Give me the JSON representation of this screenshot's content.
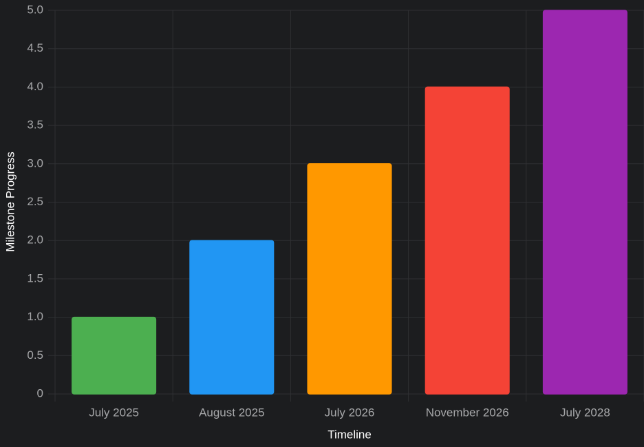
{
  "chart_data": {
    "type": "bar",
    "x_label": "Timeline",
    "y_label": "Milestone Progress",
    "categories": [
      "July 2025",
      "August 2025",
      "July 2026",
      "November 2026",
      "July 2028"
    ],
    "values": [
      1,
      2,
      3,
      4,
      5
    ],
    "colors": [
      "#4caf50",
      "#2196f3",
      "#ff9800",
      "#f44336",
      "#9c27b0"
    ],
    "ylim": [
      0,
      5
    ],
    "yticks": [
      0,
      0.5,
      {
        "value": 1,
        "label": "1.0"
      },
      1.5,
      {
        "value": 2,
        "label": "2.0"
      },
      2.5,
      {
        "value": 3,
        "label": "3.0"
      },
      3.5,
      {
        "value": 4,
        "label": "4.0"
      },
      4.5,
      {
        "value": 5,
        "label": "5.0"
      }
    ],
    "grid": true
  }
}
